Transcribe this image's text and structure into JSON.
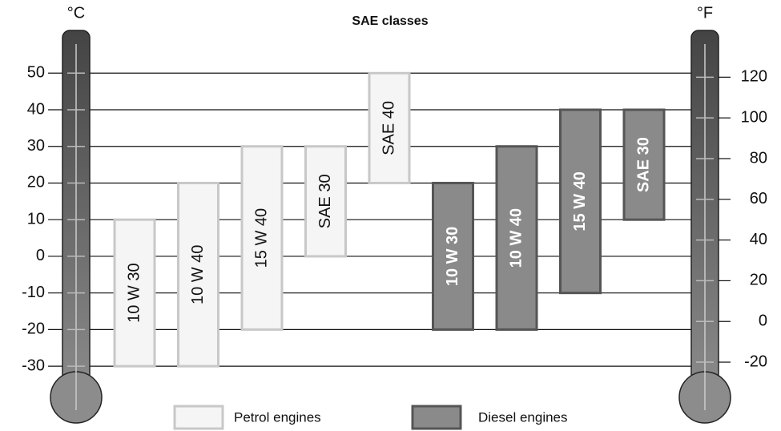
{
  "chart_data": {
    "type": "range_bar",
    "title": "SAE classes",
    "y_label": "°C",
    "y2_label": "°F",
    "ylim": [
      -35,
      55
    ],
    "yticks": [
      50,
      40,
      30,
      20,
      10,
      0,
      -10,
      -20,
      -30
    ],
    "y2lim": [
      -31,
      131
    ],
    "y2ticks": [
      120,
      100,
      80,
      60,
      40,
      20,
      0,
      -20
    ],
    "grid": true,
    "legend": "bottom",
    "series": [
      {
        "name": "Petrol engines",
        "color": "#f5f5f5",
        "edge": "#c8c8c8",
        "text_color": "#111111",
        "labels": [
          "10 W 30",
          "10 W 40",
          "15 W 40",
          "SAE 30",
          "SAE 40"
        ],
        "low": [
          -30,
          -30,
          -20,
          0,
          20
        ],
        "high": [
          10,
          20,
          30,
          30,
          50
        ]
      },
      {
        "name": "Diesel engines",
        "color": "#8a8a8a",
        "edge": "#555555",
        "text_color": "#ffffff",
        "labels": [
          "10 W 30",
          "10 W 40",
          "15 W 40",
          "SAE 30"
        ],
        "low": [
          -20,
          -20,
          -10,
          10
        ],
        "high": [
          20,
          30,
          40,
          40
        ]
      }
    ]
  }
}
